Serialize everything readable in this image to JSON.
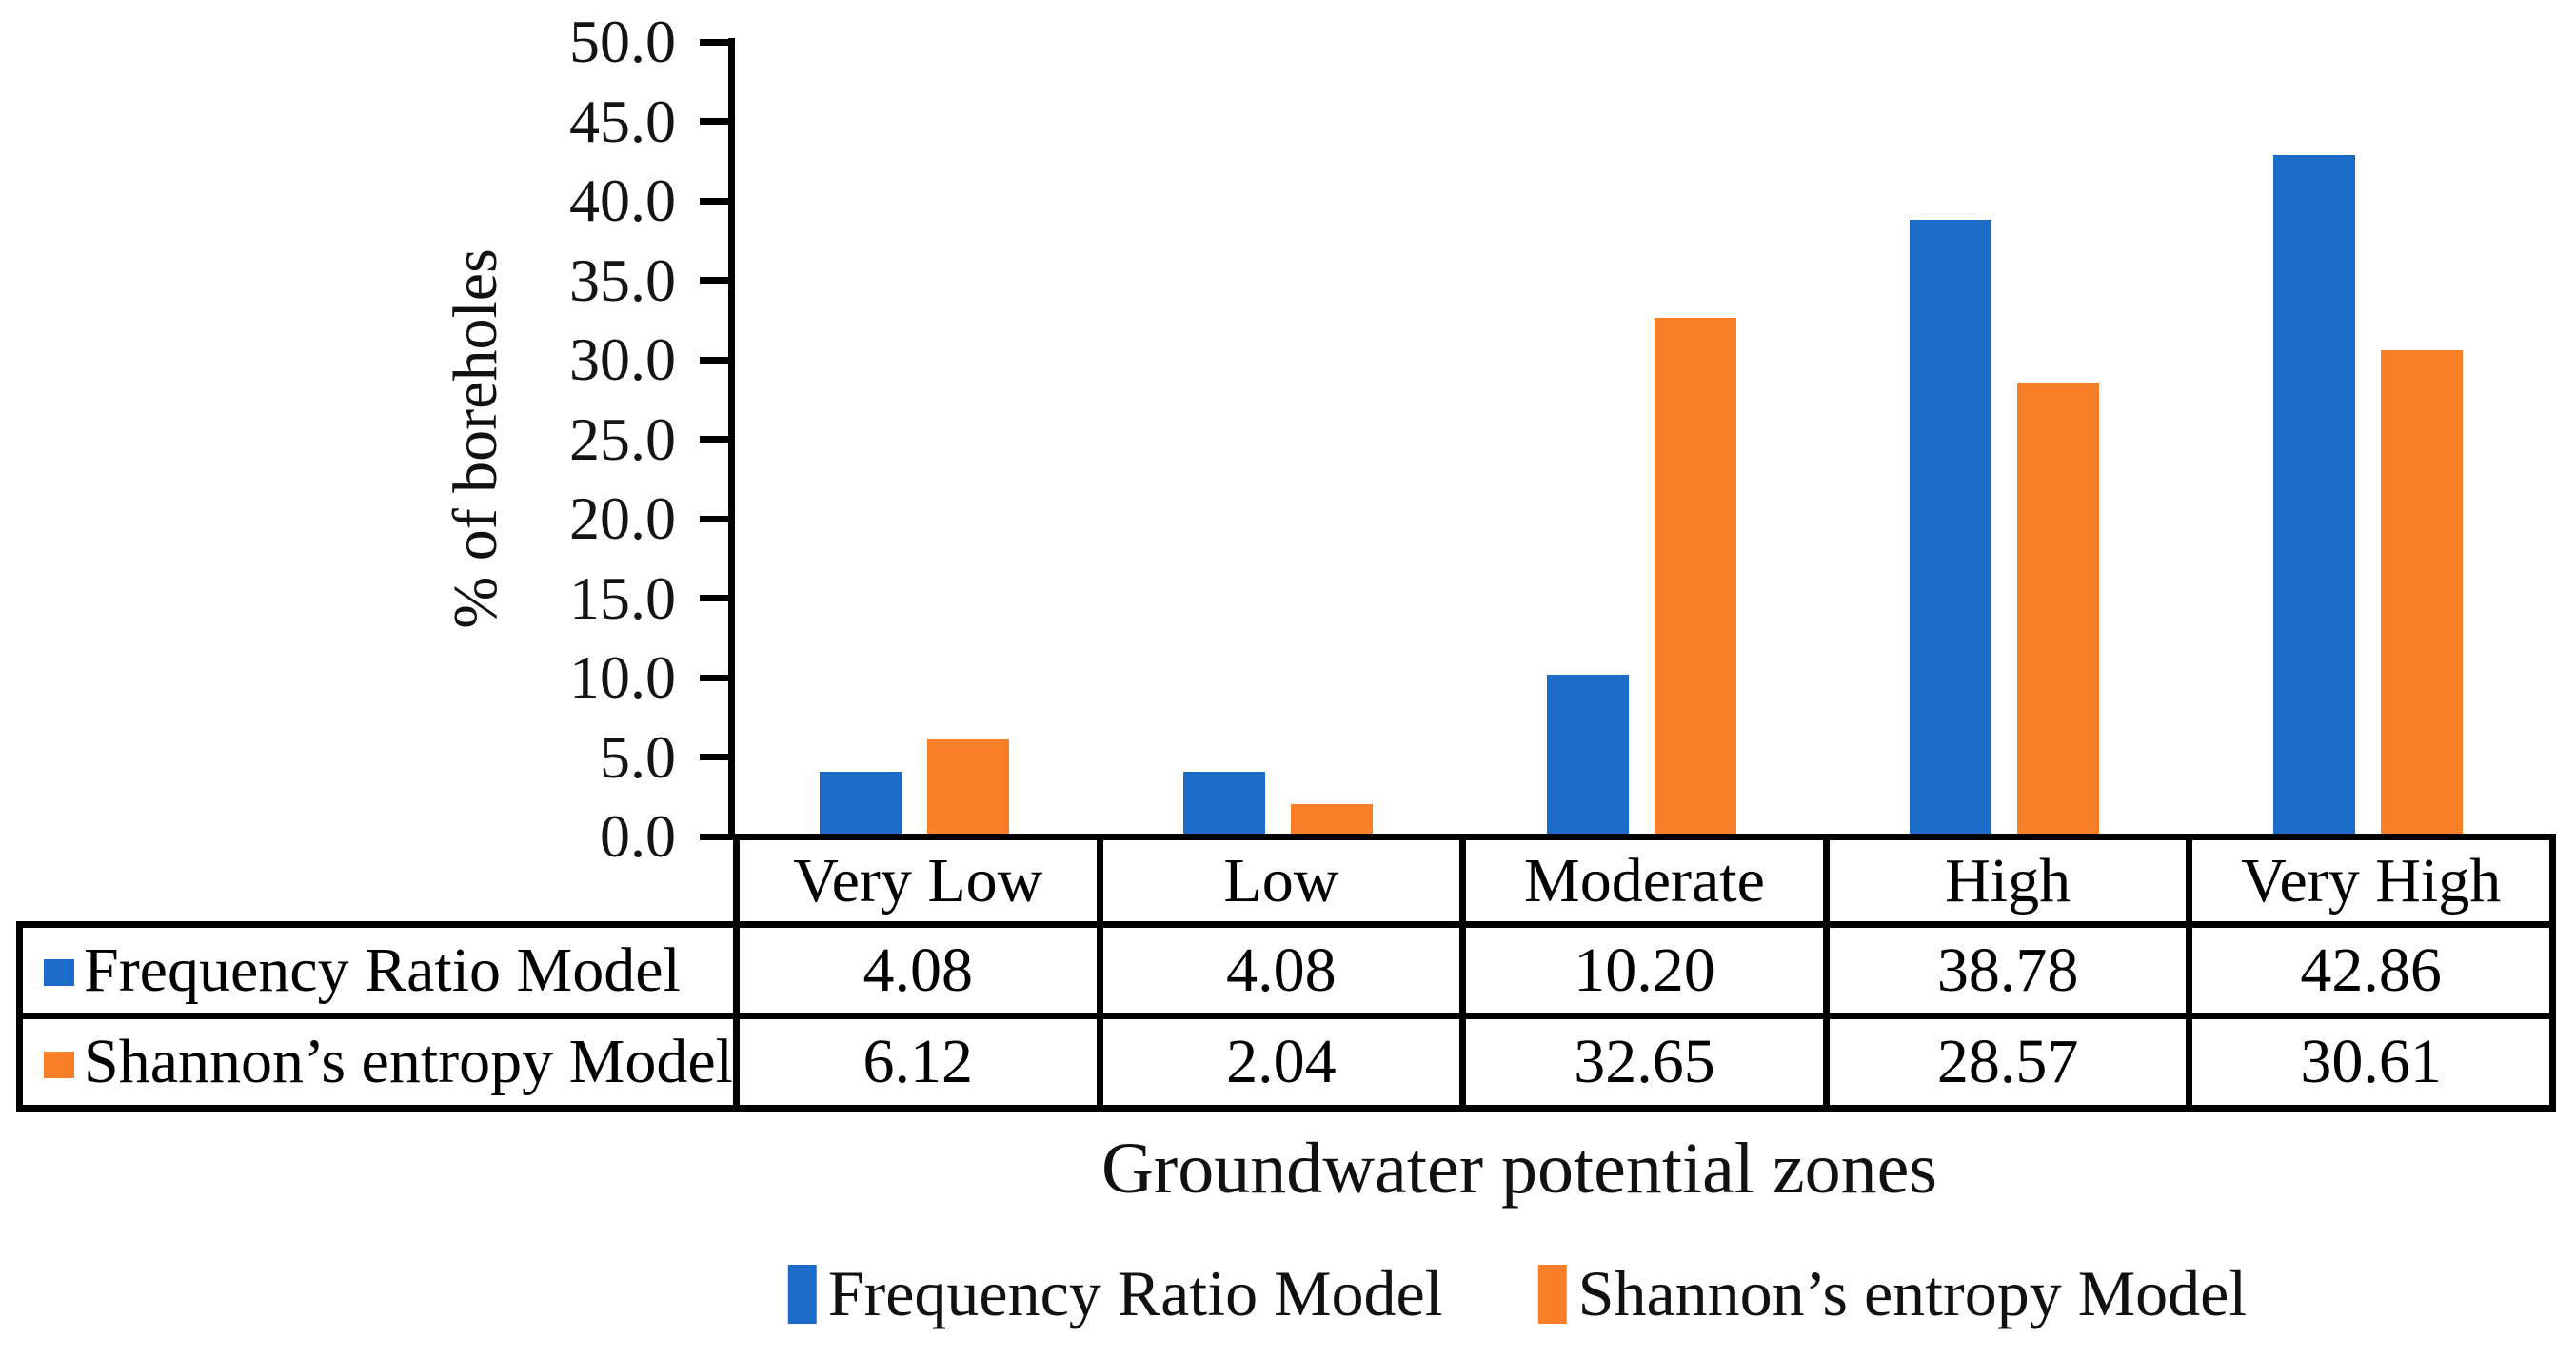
{
  "chart_data": {
    "type": "bar",
    "categories": [
      "Very Low",
      "Low",
      "Moderate",
      "High",
      "Very High"
    ],
    "series": [
      {
        "name": "Frequency Ratio Model",
        "color": "#1c6bc8",
        "values": [
          4.08,
          4.08,
          10.2,
          38.78,
          42.86
        ]
      },
      {
        "name": "Shannon’s entropy Model",
        "color": "#f87e27",
        "values": [
          6.12,
          2.04,
          32.65,
          28.57,
          30.61
        ]
      }
    ],
    "xlabel": "Groundwater potential zones",
    "ylabel": "% of boreholes",
    "ylim": [
      0,
      50
    ],
    "ytick_step": 5,
    "ytick_decimals": 1,
    "value_decimals": 2,
    "grid": false,
    "legend_position": "bottom",
    "show_data_table": true,
    "axis_color": "#000000",
    "background": "#ffffff"
  }
}
